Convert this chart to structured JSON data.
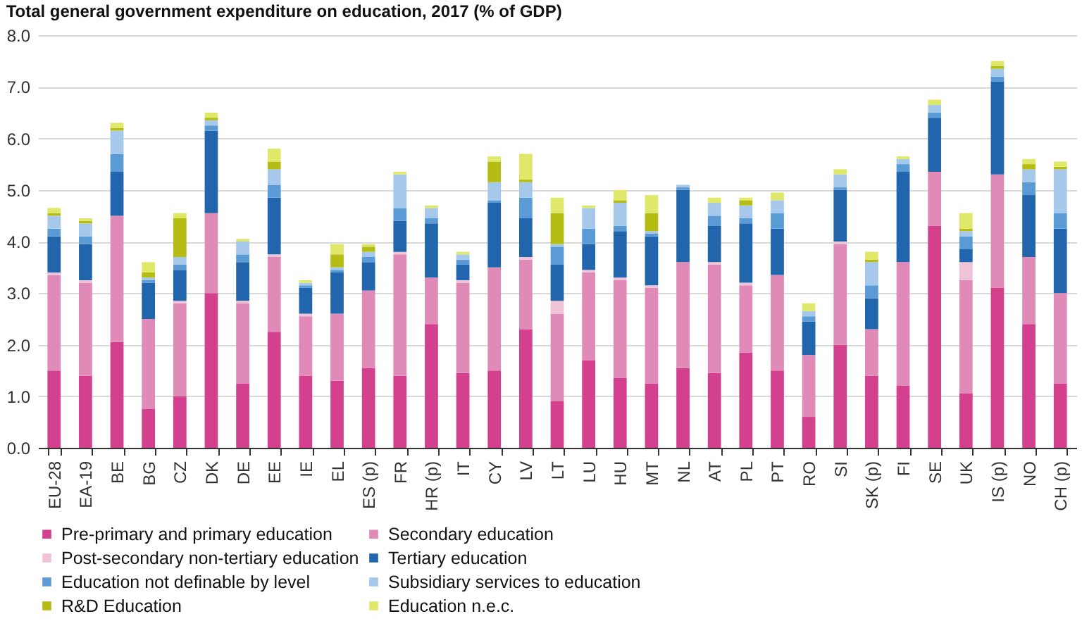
{
  "chart_data": {
    "type": "bar",
    "title": "Total general government expenditure on education, 2017 (% of GDP)",
    "categories": [
      "EU-28",
      "EA-19",
      "BE",
      "BG",
      "CZ",
      "DK",
      "DE",
      "EE",
      "IE",
      "EL",
      "ES (p)",
      "FR",
      "HR (p)",
      "IT",
      "CY",
      "LV",
      "LT",
      "LU",
      "HU",
      "MT",
      "NL",
      "AT",
      "PL",
      "PT",
      "RO",
      "SI",
      "SK (p)",
      "FI",
      "SE",
      "UK",
      "IS (p)",
      "NO",
      "CH (p)"
    ],
    "stacked": true,
    "series": [
      {
        "name": "Pre-primary and primary education",
        "color": "#d3418e",
        "values": [
          1.5,
          1.4,
          2.05,
          0.75,
          1.0,
          3.0,
          1.25,
          2.25,
          1.4,
          1.3,
          1.55,
          1.4,
          2.4,
          1.45,
          1.5,
          2.3,
          0.9,
          1.7,
          1.35,
          1.25,
          1.55,
          1.45,
          1.85,
          1.5,
          0.6,
          2.0,
          1.4,
          1.2,
          4.3,
          1.05,
          3.1,
          2.4,
          1.25
        ]
      },
      {
        "name": "Secondary education",
        "color": "#e08ab8",
        "values": [
          1.85,
          1.8,
          2.45,
          1.75,
          1.8,
          1.55,
          1.55,
          1.45,
          1.15,
          1.3,
          1.5,
          2.35,
          0.9,
          1.75,
          2.0,
          1.35,
          1.7,
          1.7,
          1.9,
          1.85,
          2.05,
          2.1,
          1.3,
          1.85,
          1.2,
          1.95,
          0.9,
          2.4,
          1.05,
          2.2,
          2.2,
          1.3,
          1.75
        ]
      },
      {
        "name": "Post-secondary non-tertiary education",
        "color": "#f0c4d8",
        "values": [
          0.05,
          0.05,
          0,
          0,
          0.05,
          0,
          0.05,
          0.05,
          0.05,
          0,
          0,
          0.05,
          0,
          0.05,
          0,
          0.05,
          0.25,
          0.05,
          0.05,
          0.05,
          0,
          0.05,
          0.05,
          0,
          0,
          0.05,
          0,
          0,
          0,
          0.35,
          0,
          0,
          0
        ]
      },
      {
        "name": "Tertiary education",
        "color": "#2166ac",
        "values": [
          0.7,
          0.7,
          0.85,
          0.7,
          0.6,
          1.6,
          0.75,
          1.1,
          0.5,
          0.8,
          0.55,
          0.6,
          1.05,
          0.3,
          1.25,
          0.75,
          0.7,
          0.5,
          0.9,
          0.95,
          1.4,
          0.7,
          1.15,
          0.9,
          0.65,
          1.0,
          0.6,
          1.75,
          1.05,
          0.25,
          1.8,
          1.2,
          1.25
        ]
      },
      {
        "name": "Education not definable by level",
        "color": "#5b9bd5",
        "values": [
          0.15,
          0.15,
          0.35,
          0.05,
          0.1,
          0.1,
          0.15,
          0.25,
          0.05,
          0.05,
          0.1,
          0.25,
          0.1,
          0.1,
          0.05,
          0.4,
          0.35,
          0.3,
          0.1,
          0.05,
          0.05,
          0.2,
          0.1,
          0.3,
          0.1,
          0.05,
          0.25,
          0.15,
          0.1,
          0.25,
          0.1,
          0.25,
          0.3
        ]
      },
      {
        "name": "Subsidiary services to education",
        "color": "#a6c8ea",
        "values": [
          0.25,
          0.25,
          0.45,
          0.05,
          0.15,
          0.1,
          0.25,
          0.3,
          0.05,
          0.05,
          0.1,
          0.65,
          0.2,
          0.1,
          0.35,
          0.3,
          0.05,
          0.4,
          0.45,
          0.05,
          0.05,
          0.25,
          0.25,
          0.25,
          0.1,
          0.25,
          0.45,
          0.1,
          0.15,
          0.1,
          0.15,
          0.25,
          0.85
        ]
      },
      {
        "name": "R&D Education",
        "color": "#b5bd14",
        "values": [
          0.05,
          0.05,
          0.05,
          0.1,
          0.75,
          0.05,
          0,
          0.15,
          0,
          0.25,
          0.1,
          0,
          0,
          0,
          0.4,
          0.05,
          0.6,
          0,
          0.05,
          0.35,
          0,
          0,
          0.1,
          0,
          0,
          0,
          0.05,
          0,
          0,
          0.05,
          0.05,
          0.1,
          0.05
        ]
      },
      {
        "name": "Education n.e.c.",
        "color": "#e0e86a",
        "values": [
          0.1,
          0.05,
          0.1,
          0.2,
          0.1,
          0.1,
          0.05,
          0.25,
          0.05,
          0.2,
          0.05,
          0.05,
          0.05,
          0.05,
          0.1,
          0.5,
          0.3,
          0.05,
          0.2,
          0.35,
          0,
          0.1,
          0.05,
          0.15,
          0.15,
          0.1,
          0.15,
          0.05,
          0.1,
          0.3,
          0.1,
          0.1,
          0.1
        ]
      }
    ],
    "ylim": [
      0,
      8
    ],
    "yticks": [
      {
        "value": 0,
        "label": "0.0"
      },
      {
        "value": 1,
        "label": "1.0"
      },
      {
        "value": 2,
        "label": "2.0"
      },
      {
        "value": 3,
        "label": "3.0"
      },
      {
        "value": 4,
        "label": "4.0"
      },
      {
        "value": 5,
        "label": "5.0"
      },
      {
        "value": 6,
        "label": "6.0"
      },
      {
        "value": 7,
        "label": "7.0"
      },
      {
        "value": 8,
        "label": "8.0"
      }
    ],
    "grid": "y",
    "legend": "bottom"
  }
}
